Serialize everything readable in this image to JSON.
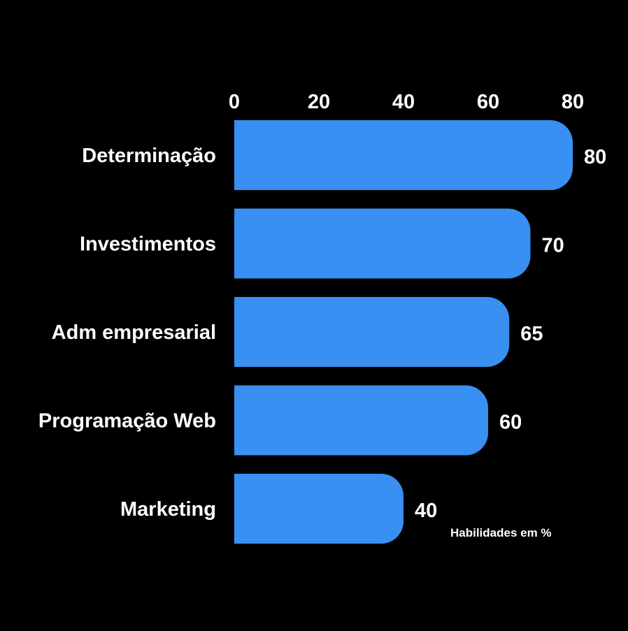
{
  "chart_data": {
    "type": "bar",
    "orientation": "horizontal",
    "categories": [
      "Determinação",
      "Investimentos",
      "Adm empresarial",
      "Programação Web",
      "Marketing"
    ],
    "values": [
      80,
      70,
      65,
      60,
      40
    ],
    "xlim": [
      0,
      80
    ],
    "x_ticks": [
      "0",
      "20",
      "40",
      "60",
      "80"
    ],
    "tick_position": "top",
    "annotation": "Habilidades em %",
    "grid": false,
    "legend": "none",
    "bar_color": "#3890f2",
    "background_color": "#000000",
    "text_color": "#ffffff"
  }
}
